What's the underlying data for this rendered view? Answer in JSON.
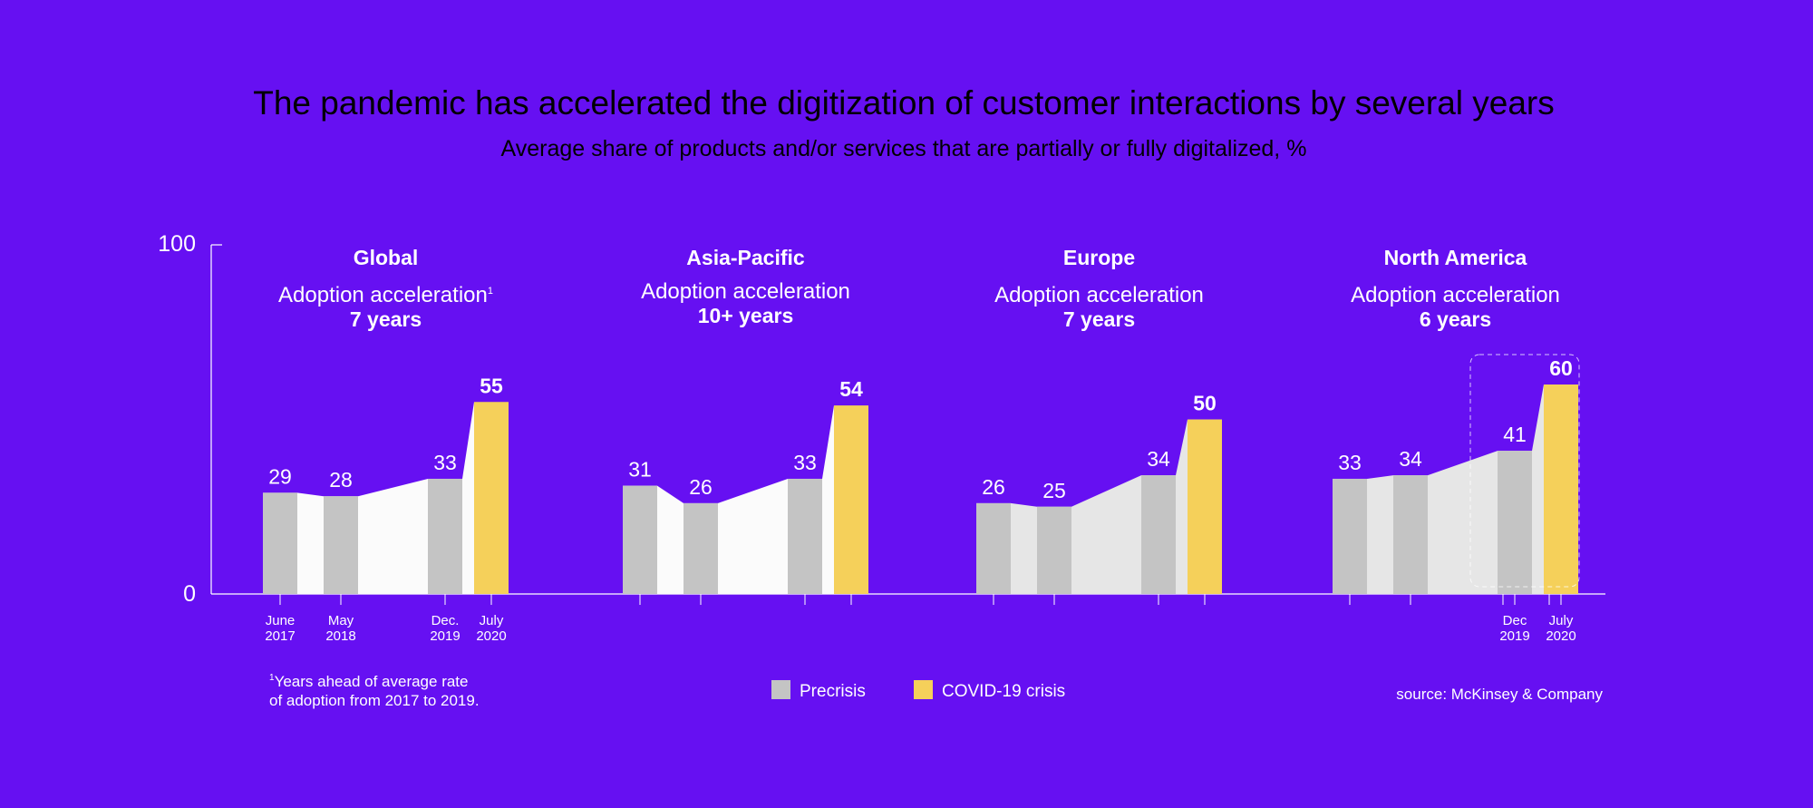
{
  "chart_data": {
    "type": "bar",
    "title": "The pandemic has accelerated the digitization of customer interactions by several years",
    "subtitle": "Average share of products and/or services that are partially or fully digitalized, %",
    "ylim": [
      0,
      100
    ],
    "y_ticks": [
      "0",
      "100"
    ],
    "panels": [
      {
        "region": "Global",
        "accel_label": "Adoption acceleration",
        "footnote_mark": "1",
        "accel_years": "7 years",
        "bars": [
          {
            "value": 29,
            "label": "29",
            "type": "precrisis",
            "date_line1": "June",
            "date_line2": "2017"
          },
          {
            "value": 28,
            "label": "28",
            "type": "precrisis",
            "date_line1": "May",
            "date_line2": "2018"
          },
          {
            "value": 33,
            "label": "33",
            "type": "precrisis",
            "date_line1": "Dec.",
            "date_line2": "2019"
          },
          {
            "value": 55,
            "label": "55",
            "type": "covid",
            "date_line1": "July",
            "date_line2": "2020"
          }
        ]
      },
      {
        "region": "Asia-Pacific",
        "accel_label": "Adoption acceleration",
        "footnote_mark": "",
        "accel_years": "10+ years",
        "bars": [
          {
            "value": 31,
            "label": "31",
            "type": "precrisis"
          },
          {
            "value": 26,
            "label": "26",
            "type": "precrisis"
          },
          {
            "value": 33,
            "label": "33",
            "type": "precrisis"
          },
          {
            "value": 54,
            "label": "54",
            "type": "covid"
          }
        ]
      },
      {
        "region": "Europe",
        "accel_label": "Adoption acceleration",
        "footnote_mark": "",
        "accel_years": "7 years",
        "bars": [
          {
            "value": 26,
            "label": "26",
            "type": "precrisis"
          },
          {
            "value": 25,
            "label": "25",
            "type": "precrisis"
          },
          {
            "value": 34,
            "label": "34",
            "type": "precrisis"
          },
          {
            "value": 50,
            "label": "50",
            "type": "covid"
          }
        ]
      },
      {
        "region": "North America",
        "accel_label": "Adoption acceleration",
        "footnote_mark": "",
        "accel_years": "6 years",
        "bars": [
          {
            "value": 33,
            "label": "33",
            "type": "precrisis"
          },
          {
            "value": 34,
            "label": "34",
            "type": "precrisis"
          },
          {
            "value": 41,
            "label": "41",
            "type": "precrisis",
            "date_line1": "Dec",
            "date_line2": "2019"
          },
          {
            "value": 60,
            "label": "60",
            "type": "covid",
            "date_line1": "July",
            "date_line2": "2020"
          }
        ]
      }
    ],
    "legend": [
      {
        "label": "Precrisis",
        "color": "#c4c4c4"
      },
      {
        "label": "COVID-19 crisis",
        "color": "#f5d05a"
      }
    ],
    "footnote": [
      "Years ahead of average rate",
      "of adoption from 2017 to 2019."
    ],
    "footnote_mark": "1",
    "source": "source: McKinsey & Company"
  },
  "colors": {
    "background": "#6610f2",
    "precrisis": "#c4c4c4",
    "covid": "#f5d05a",
    "area_light": "#fbfbfb",
    "area_grey": "#e6e6e6"
  }
}
